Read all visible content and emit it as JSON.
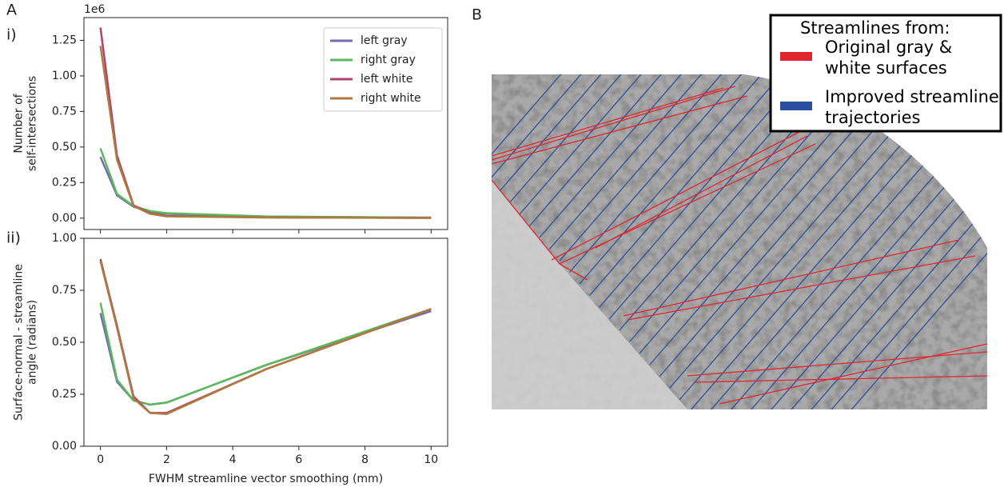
{
  "figure": {
    "panel_labels": [
      "A",
      "B"
    ],
    "panel_b": {
      "legend_title": "Streamlines from:",
      "entries": [
        {
          "label": [
            "Original gray &",
            "white surfaces"
          ],
          "color": "#e0262e"
        },
        {
          "label": [
            "Improved streamline",
            "trajectories"
          ],
          "color": "#2a4f9e"
        }
      ]
    }
  },
  "chart_data": [
    {
      "type": "line",
      "panel": "i)",
      "ylabel": [
        "Number of",
        "self-intersections"
      ],
      "y_offset_label": "1e6",
      "x": [
        0,
        0.5,
        1,
        1.5,
        2,
        5,
        10
      ],
      "xlim": [
        -0.5,
        10.5
      ],
      "xticks": [
        0,
        2,
        4,
        6,
        8,
        10
      ],
      "ylim": [
        -0.08,
        1.41
      ],
      "yticks": [
        {
          "value": 0,
          "label": "0.00"
        },
        {
          "value": 0.25,
          "label": "0.25"
        },
        {
          "value": 0.5,
          "label": "0.50"
        },
        {
          "value": 0.75,
          "label": "0.75"
        },
        {
          "value": 1,
          "label": "1.00"
        },
        {
          "value": 1.25,
          "label": "1.25"
        }
      ],
      "legend": "upper right",
      "series": [
        {
          "name": "left gray",
          "color": "#6f6cb0",
          "values": [
            0.43,
            0.16,
            0.08,
            0.045,
            0.03,
            0.01,
            0.003
          ]
        },
        {
          "name": "right gray",
          "color": "#5cb85c",
          "values": [
            0.49,
            0.17,
            0.085,
            0.05,
            0.035,
            0.012,
            0.004
          ]
        },
        {
          "name": "left white",
          "color": "#ad4170",
          "values": [
            1.34,
            0.44,
            0.09,
            0.035,
            0.015,
            0.005,
            0.002
          ]
        },
        {
          "name": "right white",
          "color": "#b07a3f",
          "values": [
            1.21,
            0.41,
            0.085,
            0.03,
            0.012,
            0.004,
            0.001
          ]
        }
      ]
    },
    {
      "type": "line",
      "panel": "ii)",
      "ylabel": [
        "Surface-normal - streamline",
        "angle (radians)"
      ],
      "xlabel": "FWHM streamline vector smoothing (mm)",
      "x": [
        0,
        0.5,
        1,
        1.5,
        2,
        5,
        10
      ],
      "xlim": [
        -0.5,
        10.5
      ],
      "xticks": [
        0,
        2,
        4,
        6,
        8,
        10
      ],
      "ylim": [
        0,
        1
      ],
      "yticks": [
        {
          "value": 0,
          "label": "0.00"
        },
        {
          "value": 0.25,
          "label": "0.25"
        },
        {
          "value": 0.5,
          "label": "0.50"
        },
        {
          "value": 0.75,
          "label": "0.75"
        },
        {
          "value": 1,
          "label": "1.00"
        }
      ],
      "series": [
        {
          "name": "left gray",
          "color": "#6f6cb0",
          "values": [
            0.64,
            0.31,
            0.22,
            0.2,
            0.21,
            0.39,
            0.65
          ]
        },
        {
          "name": "right gray",
          "color": "#5cb85c",
          "values": [
            0.69,
            0.32,
            0.22,
            0.2,
            0.21,
            0.39,
            0.66
          ]
        },
        {
          "name": "left white",
          "color": "#ad4170",
          "values": [
            0.9,
            0.58,
            0.24,
            0.16,
            0.16,
            0.37,
            0.66
          ]
        },
        {
          "name": "right white",
          "color": "#b07a3f",
          "values": [
            0.89,
            0.57,
            0.23,
            0.16,
            0.155,
            0.37,
            0.66
          ]
        }
      ]
    }
  ]
}
